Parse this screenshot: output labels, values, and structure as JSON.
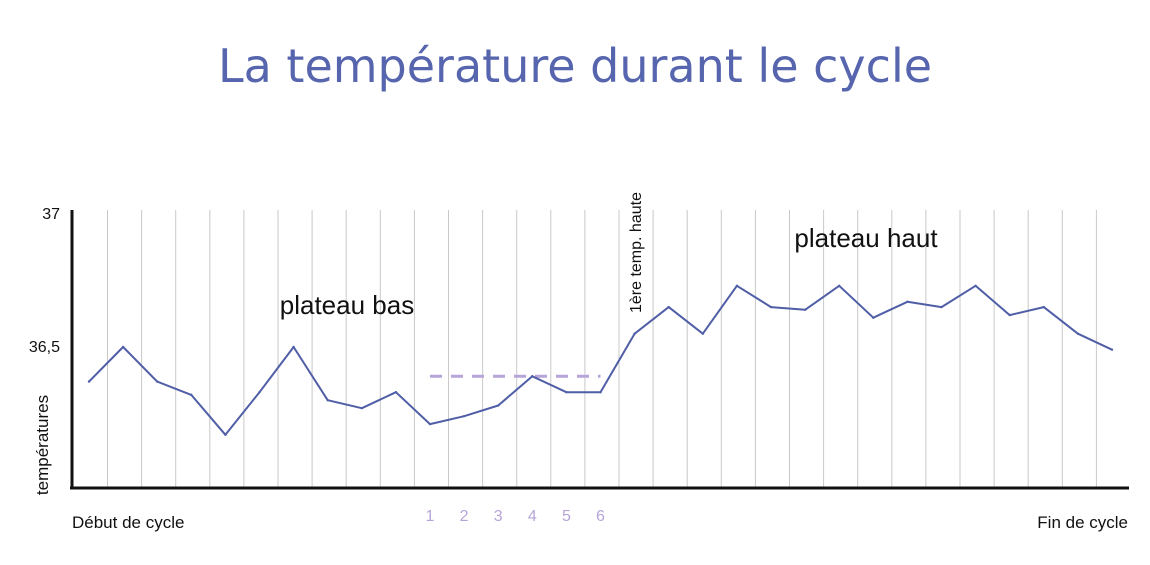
{
  "chart_data": {
    "type": "line",
    "title": "La température durant le cycle",
    "ylabel": "températures",
    "yticks": [
      "37",
      "36,5"
    ],
    "ytick_values": [
      37,
      36.5
    ],
    "ylim": [
      36,
      37
    ],
    "x_start_label": "Début de cycle",
    "x_end_label": "Fin de cycle",
    "highlight_labels": [
      "1",
      "2",
      "3",
      "4",
      "5",
      "6"
    ],
    "annotations": {
      "low_plateau": "plateau bas",
      "high_plateau": "plateau haut",
      "first_high": "1ère temp. haute"
    },
    "grid": "vertical",
    "values": [
      36.37,
      36.5,
      36.37,
      36.32,
      36.17,
      36.33,
      36.5,
      36.3,
      36.27,
      36.33,
      36.21,
      36.24,
      36.28,
      36.39,
      36.33,
      36.33,
      36.55,
      36.65,
      36.55,
      36.73,
      36.65,
      36.64,
      36.73,
      36.61,
      36.67,
      36.65,
      36.73,
      36.62,
      36.65,
      36.55,
      36.49
    ],
    "reference_level": 36.39,
    "reference_from_day": 10,
    "reference_to_day": 15,
    "line_color": "#4f5ea6",
    "reference_color": "#b7a4d8",
    "highlight_color": "#b7a4d8",
    "title_color": "#5665ad"
  }
}
